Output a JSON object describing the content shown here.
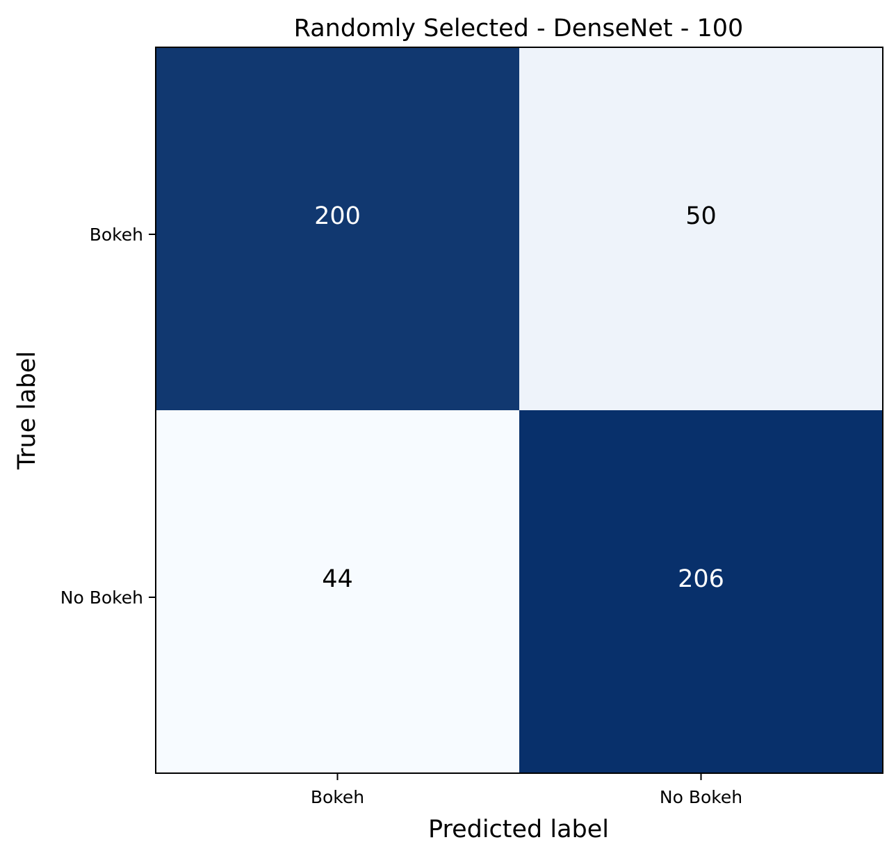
{
  "chart_data": {
    "type": "heatmap",
    "title": "Randomly Selected - DenseNet - 100",
    "xlabel": "Predicted label",
    "ylabel": "True label",
    "x_categories": [
      "Bokeh",
      "No Bokeh"
    ],
    "y_categories": [
      "Bokeh",
      "No Bokeh"
    ],
    "values": [
      [
        200,
        50
      ],
      [
        44,
        206
      ]
    ],
    "colormap": "Blues",
    "color_range": [
      44,
      206
    ],
    "colors": {
      "high": "#08306b",
      "low": "#f7fbff",
      "text_on_dark": "#ffffff",
      "text_on_light": "#000000"
    },
    "grid": false
  }
}
